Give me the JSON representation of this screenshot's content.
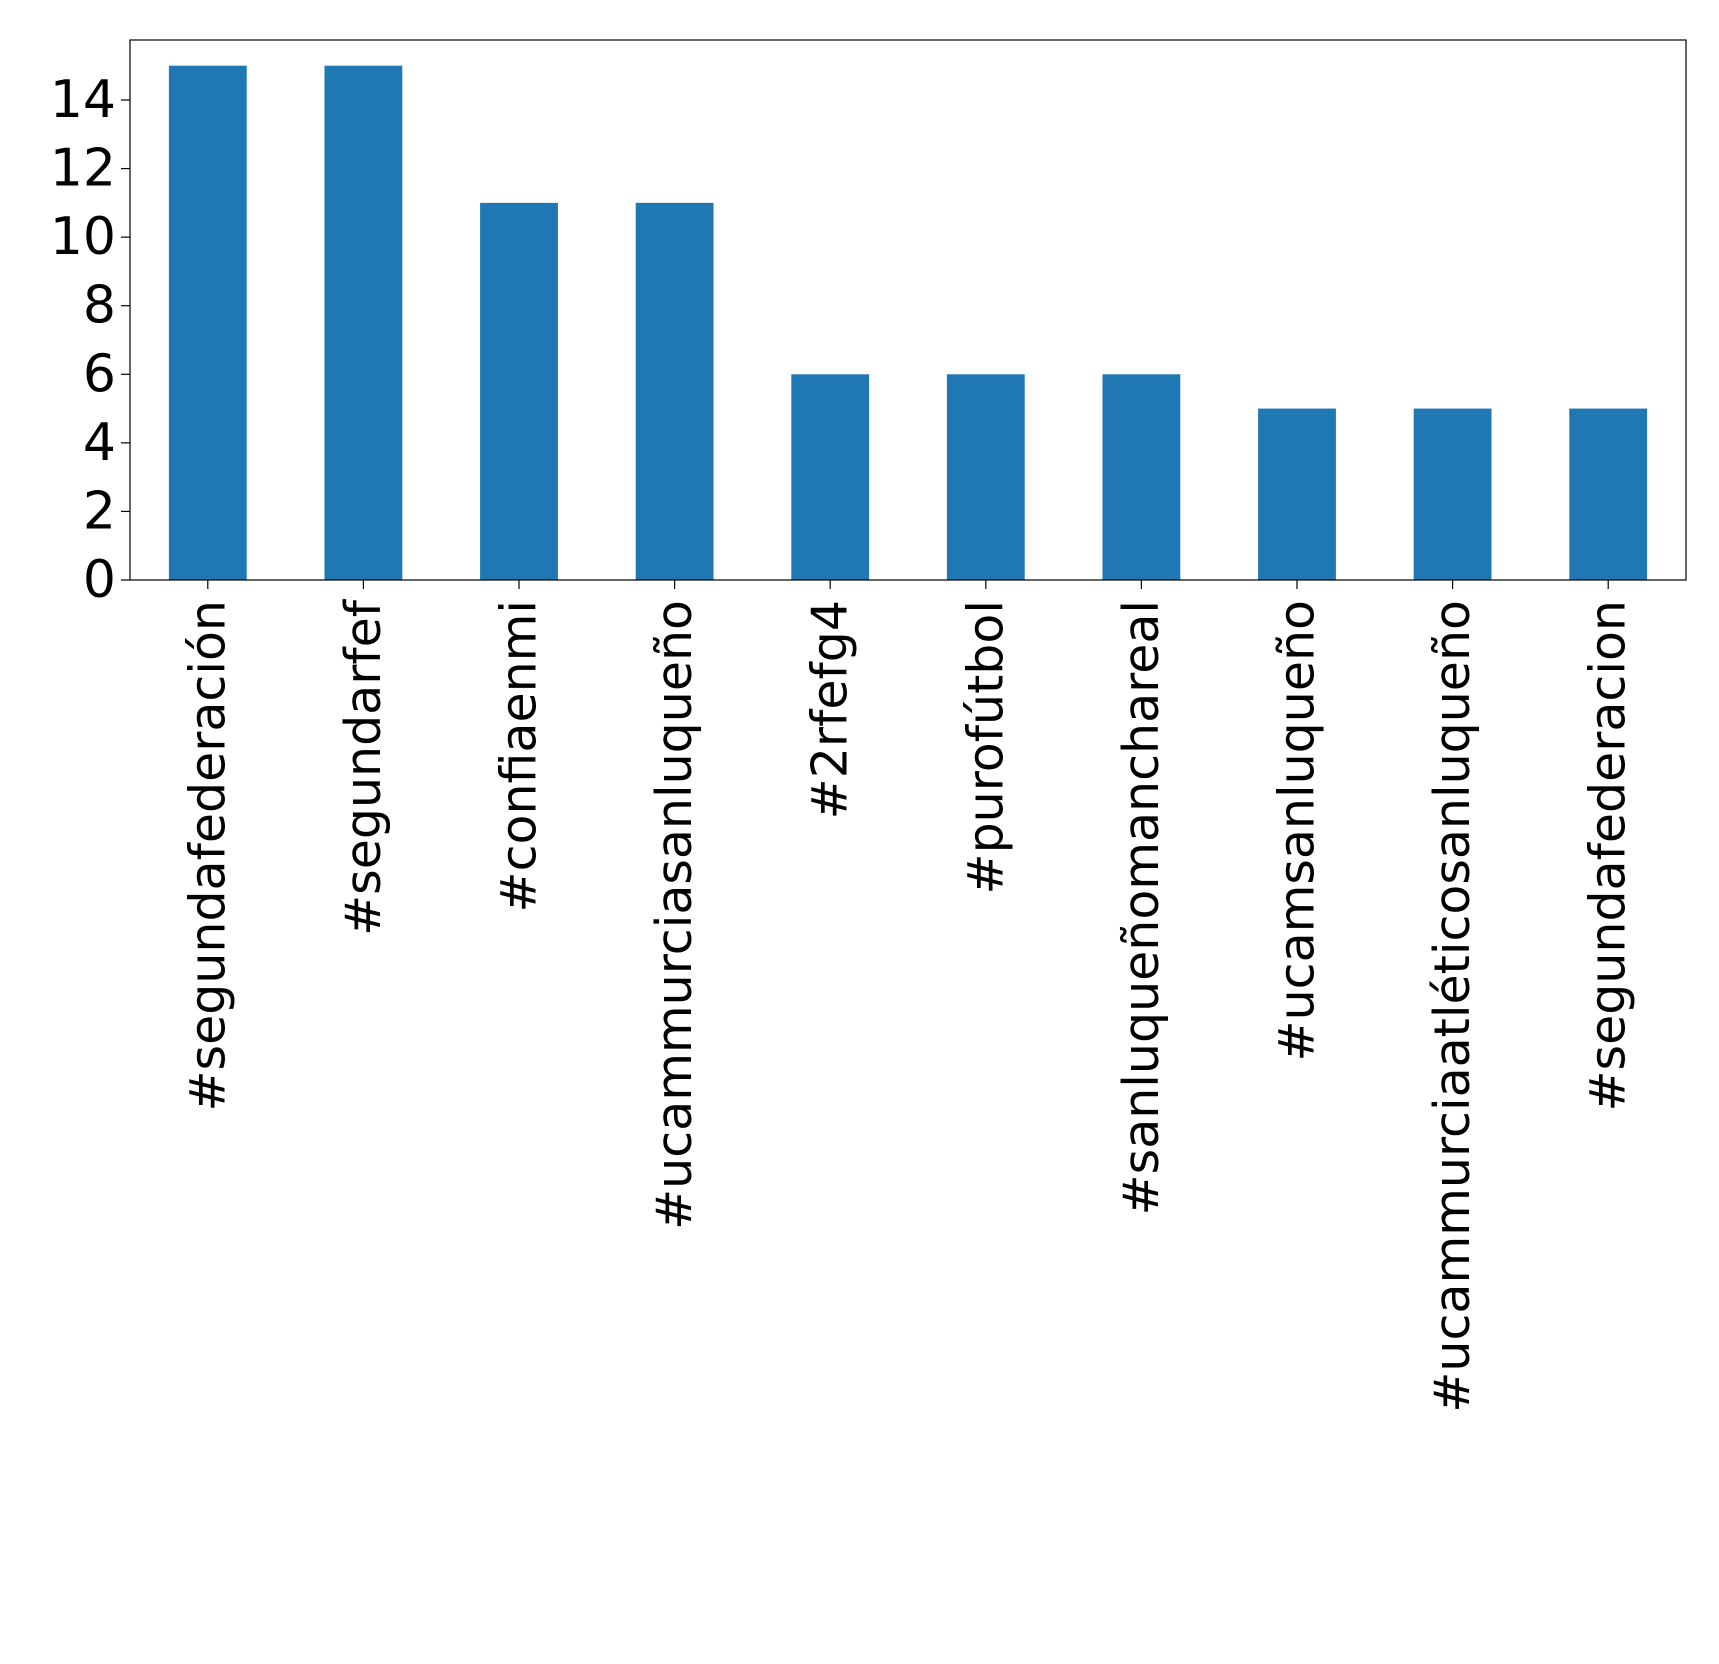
{
  "chart_data": {
    "type": "bar",
    "title": "",
    "xlabel": "",
    "ylabel": "",
    "categories": [
      "#segundafederación",
      "#segundarfef",
      "#confiaenmi",
      "#ucammurciasanluqueño",
      "#2rfefg4",
      "#purofútbol",
      "#sanluqueñomanchareal",
      "#ucamsanluqueño",
      "#ucammurciaatléticosanluqueño",
      "#segundafederacion"
    ],
    "values": [
      15,
      15,
      11,
      11,
      6,
      6,
      6,
      5,
      5,
      5
    ],
    "ylim": [
      0,
      15.75
    ],
    "yticks": [
      0,
      2,
      4,
      6,
      8,
      10,
      12,
      14
    ],
    "grid": false,
    "legend": "none",
    "bar_color": "#1f77b4"
  }
}
